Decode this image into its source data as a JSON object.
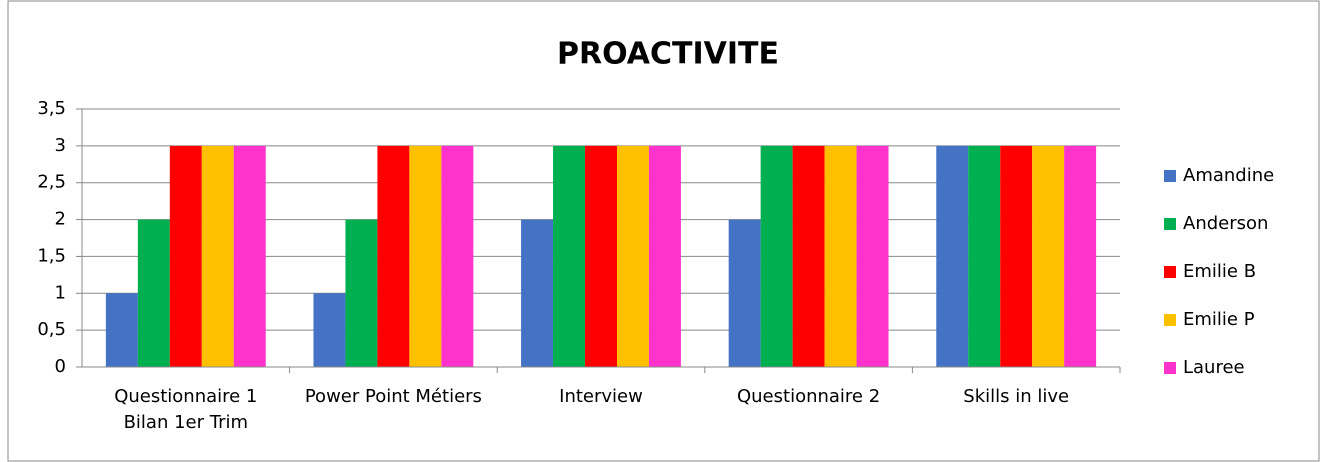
{
  "chart_data": {
    "type": "bar",
    "title": "PROACTIVITE",
    "categories": [
      "Questionnaire 1 Bilan 1er Trim",
      "Power Point Métiers",
      "Interview",
      "Questionnaire 2",
      "Skills in live"
    ],
    "series": [
      {
        "name": "Amandine",
        "color": "#4472c4",
        "values": [
          1,
          1,
          2,
          2,
          3
        ]
      },
      {
        "name": "Anderson",
        "color": "#00b050",
        "values": [
          2,
          2,
          3,
          3,
          3
        ]
      },
      {
        "name": "Emilie B",
        "color": "#ff0000",
        "values": [
          3,
          3,
          3,
          3,
          3
        ]
      },
      {
        "name": "Emilie P",
        "color": "#ffc000",
        "values": [
          3,
          3,
          3,
          3,
          3
        ]
      },
      {
        "name": "Lauree",
        "color": "#ff33cc",
        "values": [
          3,
          3,
          3,
          3,
          3
        ]
      }
    ],
    "ylim": [
      0,
      3.5
    ],
    "yticks": [
      0,
      {
        "value": 0.5,
        "label": "0,5"
      },
      1,
      {
        "value": 1.5,
        "label": "1,5"
      },
      2,
      {
        "value": 2.5,
        "label": "2,5"
      },
      3,
      {
        "value": 3.5,
        "label": "3,5"
      }
    ],
    "grid": true,
    "legend": "right"
  }
}
